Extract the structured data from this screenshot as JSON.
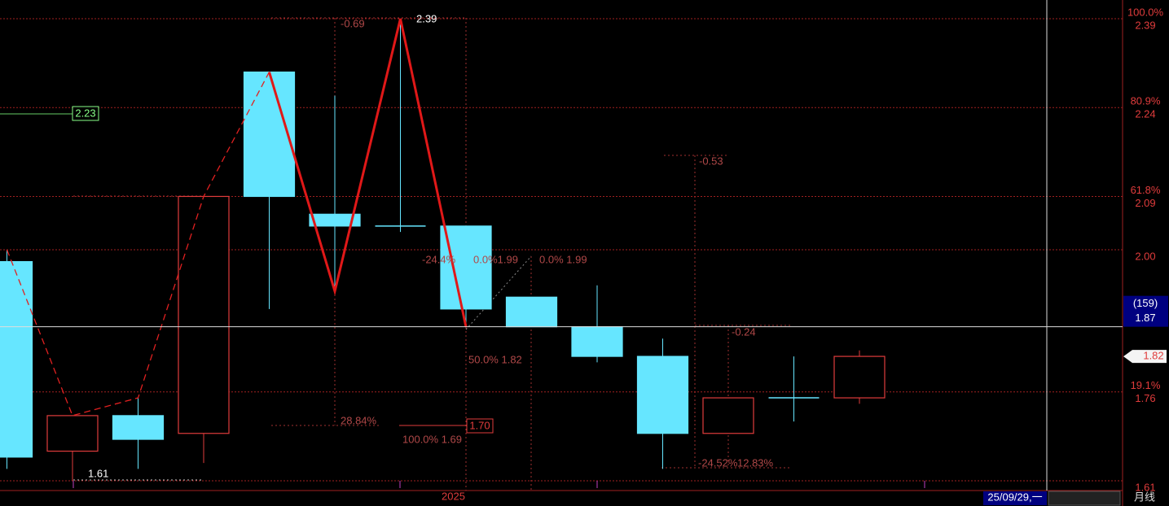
{
  "chart_data": {
    "type": "candlestick",
    "categories": [
      null,
      null,
      null,
      null,
      null,
      null,
      null,
      "2025",
      null,
      null,
      null,
      null,
      null,
      null
    ],
    "open": [
      1.98,
      1.66,
      1.72,
      1.69,
      2.3,
      2.06,
      2.04,
      2.04,
      1.92,
      1.87,
      1.82,
      1.69,
      1.75,
      1.75
    ],
    "high": [
      2.0,
      1.72,
      1.75,
      2.09,
      2.3,
      2.26,
      2.39,
      2.04,
      1.92,
      1.94,
      1.85,
      1.75,
      1.82,
      1.83
    ],
    "low": [
      1.63,
      1.61,
      1.63,
      1.64,
      1.9,
      1.93,
      2.03,
      1.87,
      1.87,
      1.81,
      1.63,
      1.69,
      1.71,
      1.74
    ],
    "close": [
      1.65,
      1.72,
      1.68,
      2.09,
      2.09,
      2.04,
      2.04,
      1.9,
      1.87,
      1.82,
      1.69,
      1.75,
      1.75,
      1.82
    ],
    "up_color": "#e03c3c",
    "down_color": "#66e6ff",
    "ylim": [
      1.61,
      2.39
    ],
    "yticks": [
      2.39,
      2.24,
      2.09,
      {
        "value": 2.0,
        "label": "2.00"
      },
      1.76,
      1.61
    ],
    "fib_levels": [
      {
        "value": 2.39,
        "label": "100.0%"
      },
      {
        "value": 2.24,
        "label": "80.9%"
      },
      {
        "value": 2.09,
        "label": "61.8%"
      },
      {
        "value": 1.76,
        "label": "19.1%"
      }
    ],
    "crosshair": {
      "value": 1.87,
      "count": "(159)",
      "date": "25/09/29,一"
    },
    "last_price": 1.82,
    "period": "月线",
    "annotations": [
      "-0.69",
      "2.39",
      "2.23",
      "1.61",
      "-24.4%",
      "0.0%1.99",
      "0.0% 1.99",
      "50.0% 1.82",
      "100.0% 1.69",
      "28.84%",
      "1.70",
      "-0.53",
      "-0.24",
      "-24.52%",
      "12.83%"
    ]
  }
}
